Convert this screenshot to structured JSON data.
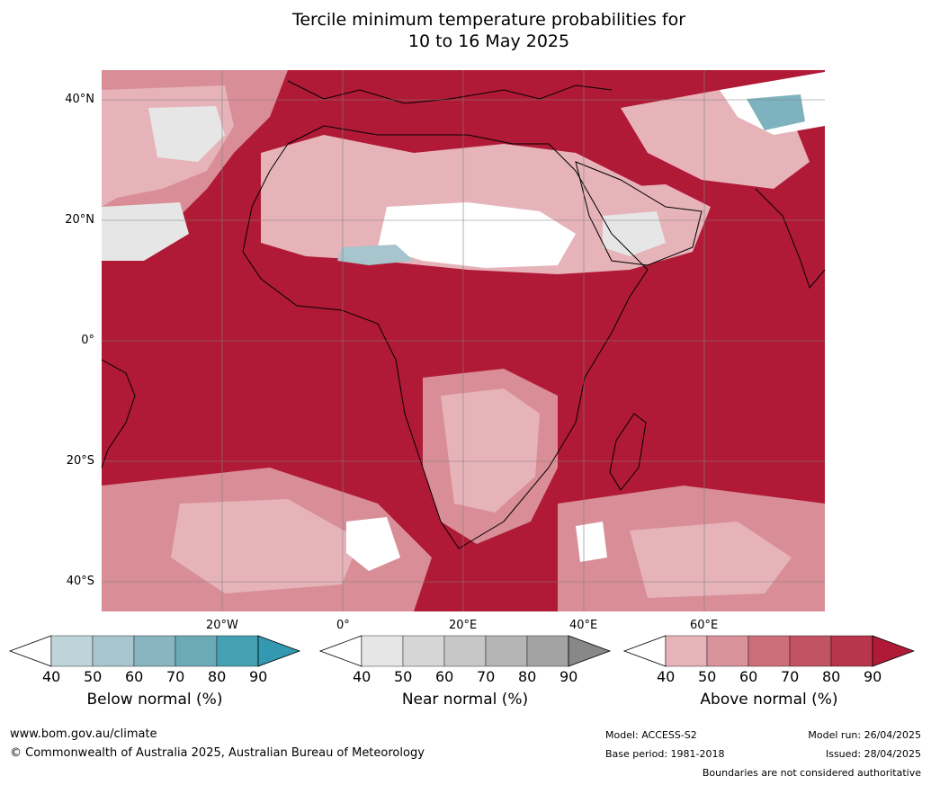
{
  "title": {
    "line1": "Tercile minimum temperature probabilities for",
    "line2": "10 to 16 May 2025"
  },
  "map": {
    "lat_labels": [
      "40°N",
      "20°N",
      "0°",
      "20°S",
      "40°S"
    ],
    "lon_labels": [
      "20°W",
      "0°",
      "20°E",
      "40°E",
      "60°E"
    ],
    "colors": {
      "ocean_base": "#b01a36",
      "above_90": "#b01a36",
      "above_80": "#c2384e",
      "above_70": "#cd6170",
      "above_60": "#d98d96",
      "above_50": "#e6b3b9",
      "near_40": "#e6e6e6",
      "below_50": "#a7c5cc",
      "below_60": "#7fb2bf",
      "white": "#ffffff",
      "coast": "#000000",
      "border": "#808080"
    }
  },
  "colorbars": [
    {
      "name": "below",
      "label": "Below normal (%)",
      "ticks": [
        "40",
        "50",
        "60",
        "70",
        "80",
        "90"
      ],
      "colors": [
        "#bed4d9",
        "#a7c5cc",
        "#88b5c0",
        "#6aabb7",
        "#45a0b2"
      ],
      "arrow_color": "#3399b0"
    },
    {
      "name": "near",
      "label": "Near normal (%)",
      "ticks": [
        "40",
        "50",
        "60",
        "70",
        "80",
        "90"
      ],
      "colors": [
        "#e6e6e6",
        "#d6d6d6",
        "#c7c7c7",
        "#b5b5b5",
        "#a3a3a3"
      ],
      "arrow_color": "#888888"
    },
    {
      "name": "above",
      "label": "Above normal (%)",
      "ticks": [
        "40",
        "50",
        "60",
        "70",
        "80",
        "90"
      ],
      "colors": [
        "#e6b3b9",
        "#d9939b",
        "#cd6f7b",
        "#c25363",
        "#b8354b"
      ],
      "arrow_color": "#b01a36"
    }
  ],
  "footer": {
    "website": "www.bom.gov.au/climate",
    "copyright": "© Commonwealth of Australia 2025, Australian Bureau of Meteorology",
    "model": "Model: ACCESS-S2",
    "base_period": "Base period: 1981-2018",
    "model_run": "Model run: 26/04/2025",
    "issued": "Issued: 28/04/2025",
    "boundaries": "Boundaries are not considered authoritative"
  }
}
